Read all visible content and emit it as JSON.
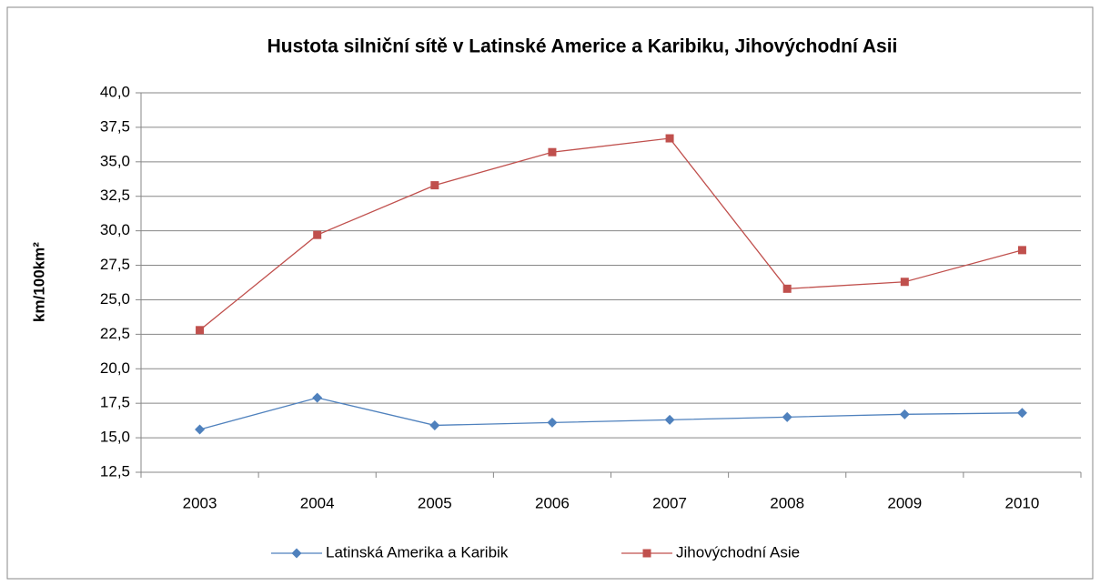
{
  "chart_data": {
    "type": "line",
    "title": "Hustota silniční sítě v Latinské Americe a Karibiku, Jihovýchodní Asii",
    "y_label": "km/100km²",
    "categories": [
      "2003",
      "2004",
      "2005",
      "2006",
      "2007",
      "2008",
      "2009",
      "2010"
    ],
    "series": [
      {
        "name": "Latinská Amerika a Karibik",
        "color": "#4f81bd",
        "marker": "diamond",
        "values": [
          15.6,
          17.9,
          15.9,
          16.1,
          16.3,
          16.5,
          16.7,
          16.8
        ]
      },
      {
        "name": "Jihovýchodní Asie",
        "color": "#c0504d",
        "marker": "square",
        "values": [
          22.8,
          29.7,
          33.3,
          35.7,
          36.7,
          25.8,
          26.3,
          28.6
        ]
      }
    ],
    "ylim": [
      12.5,
      40
    ],
    "yticks": [
      {
        "value": 12.5,
        "label": "12,5"
      },
      {
        "value": 15,
        "label": "15,0"
      },
      {
        "value": 17.5,
        "label": "17,5"
      },
      {
        "value": 20,
        "label": "20,0"
      },
      {
        "value": 22.5,
        "label": "22,5"
      },
      {
        "value": 25,
        "label": "25,0"
      },
      {
        "value": 27.5,
        "label": "27,5"
      },
      {
        "value": 30,
        "label": "30,0"
      },
      {
        "value": 32.5,
        "label": "32,5"
      },
      {
        "value": 35,
        "label": "35,0"
      },
      {
        "value": 37.5,
        "label": "37,5"
      },
      {
        "value": 40,
        "label": "40,0"
      }
    ],
    "grid": true,
    "legend": "bottom"
  }
}
